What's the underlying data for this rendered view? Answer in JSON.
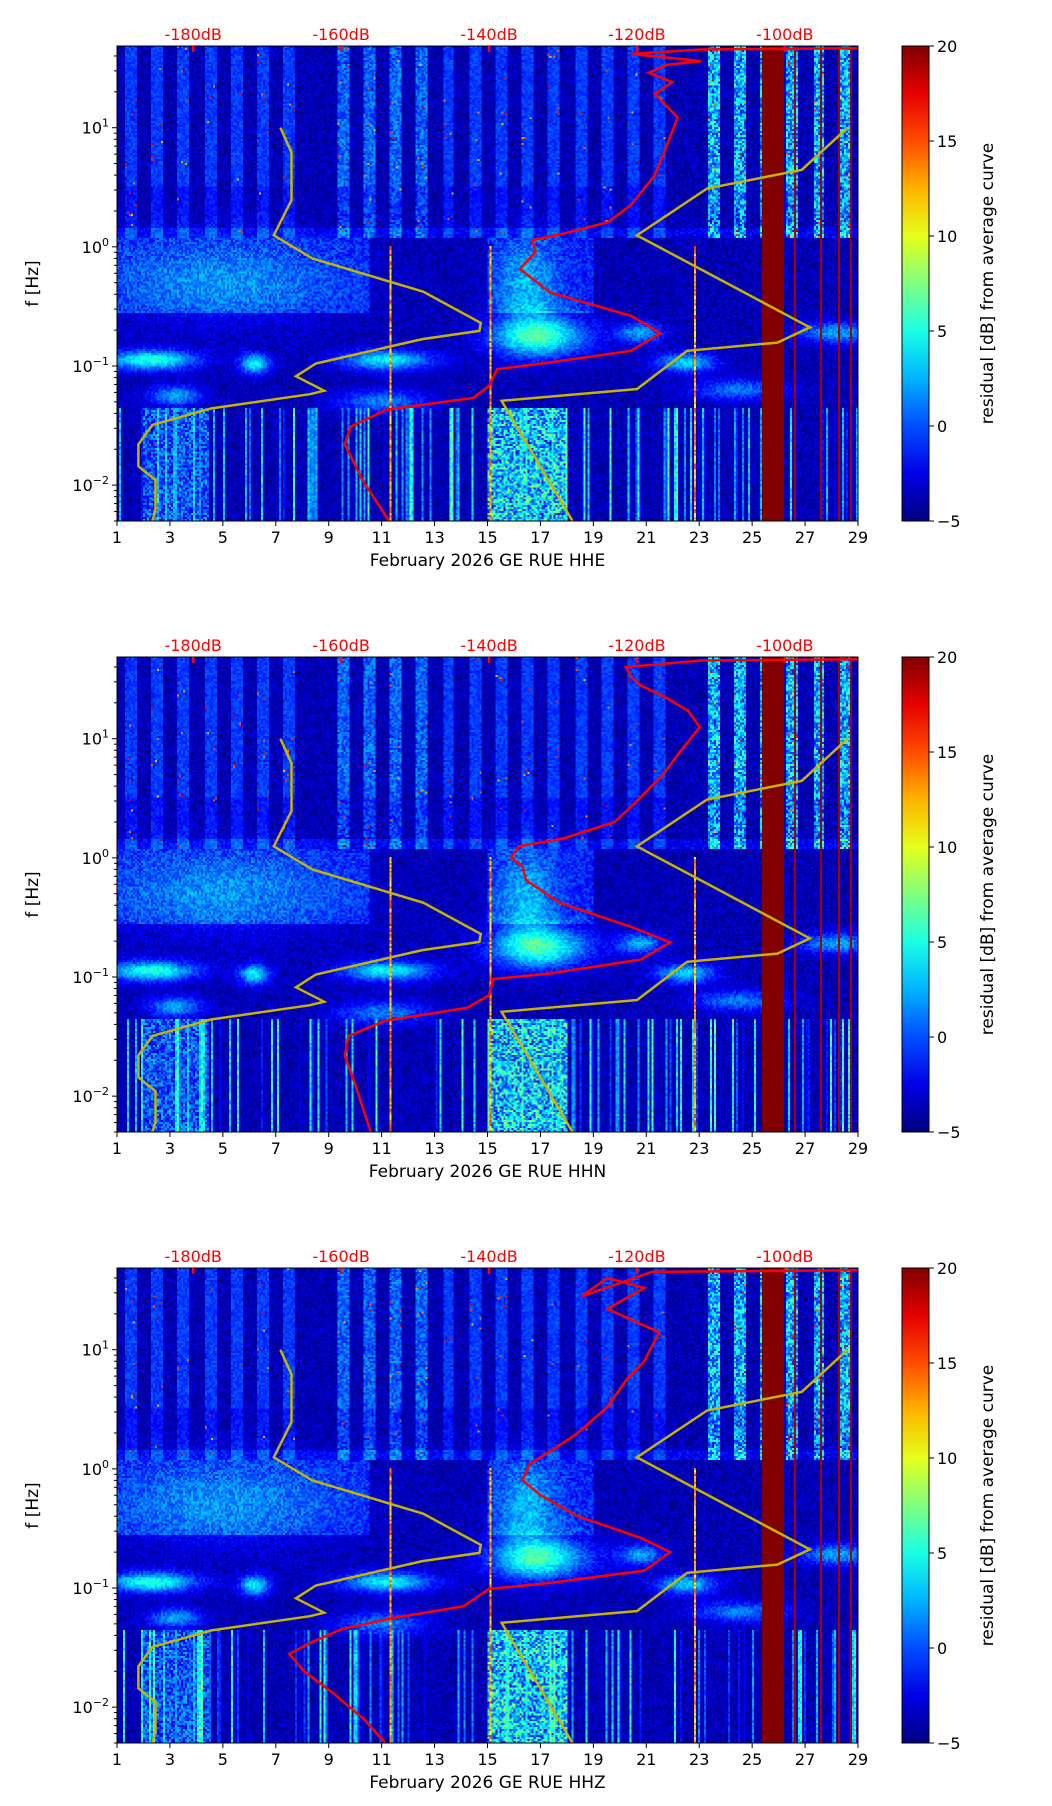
{
  "chart_data": [
    {
      "type": "heatmap",
      "xlabel": "February 2026 GE RUE  HHE",
      "ylabel": "f [Hz]",
      "colorbar_label": "residual [dB] from average curve",
      "x_ticks": [
        "1",
        "3",
        "5",
        "7",
        "9",
        "11",
        "13",
        "15",
        "17",
        "19",
        "21",
        "23",
        "25",
        "27",
        "29"
      ],
      "xlim": [
        1,
        29
      ],
      "ylim_hz": [
        0.005,
        48.5
      ],
      "y_ticks": [
        {
          "base": "10",
          "exp": "−2",
          "value": 0.01
        },
        {
          "base": "10",
          "exp": "−1",
          "value": 0.1
        },
        {
          "base": "10",
          "exp": "0",
          "value": 1
        },
        {
          "base": "10",
          "exp": "1",
          "value": 10
        }
      ],
      "top_ticks": [
        {
          "label": "-180dB",
          "value": -180
        },
        {
          "label": "-160dB",
          "value": -160
        },
        {
          "label": "-140dB",
          "value": -140
        },
        {
          "label": "-120dB",
          "value": -120
        },
        {
          "label": "-100dB",
          "value": -100
        }
      ],
      "top_range_db": [
        -190.3,
        -90.1
      ],
      "clim": [
        -5,
        20
      ],
      "colorbar_ticks": [
        "−5",
        "0",
        "5",
        "10",
        "15",
        "20"
      ],
      "colors": {
        "psd_curve": "#ff0000",
        "noise_model": "#c8b400",
        "axis_label_top": "#ff0000"
      },
      "noise_model_low": [
        [
          -168.2,
          10
        ],
        [
          -166.7,
          6.22
        ],
        [
          -166.7,
          2.47
        ],
        [
          -169.1,
          1.25
        ],
        [
          -163.9,
          0.8
        ],
        [
          -148.9,
          0.42
        ],
        [
          -141.1,
          0.23
        ],
        [
          -141.3,
          0.197
        ],
        [
          -149,
          0.168
        ],
        [
          -163.4,
          0.105
        ],
        [
          -166.1,
          0.082
        ],
        [
          -162.3,
          0.062
        ],
        [
          -164.2,
          0.058
        ],
        [
          -177.6,
          0.044
        ],
        [
          -185.5,
          0.032
        ],
        [
          -187.4,
          0.022
        ],
        [
          -187.4,
          0.0144
        ],
        [
          -185.1,
          0.011
        ],
        [
          -185.1,
          0.0062
        ],
        [
          -185.5,
          0.005
        ]
      ],
      "noise_model_high": [
        [
          -91.5,
          10
        ],
        [
          -97.7,
          4.43
        ],
        [
          -110.5,
          3.09
        ],
        [
          -120,
          1.25
        ],
        [
          -96.6,
          0.211
        ],
        [
          -101,
          0.157
        ],
        [
          -113.2,
          0.134
        ],
        [
          -120,
          0.064
        ],
        [
          -138.3,
          0.051
        ],
        [
          -128.7,
          0.005
        ]
      ],
      "psd_curve": [
        [
          -90.1,
          46.4
        ],
        [
          -111.3,
          45.3
        ],
        [
          -120.8,
          41.6
        ],
        [
          -111.3,
          36.2
        ],
        [
          -116,
          33.7
        ],
        [
          -118.4,
          28.9
        ],
        [
          -115.2,
          24.1
        ],
        [
          -117.6,
          19.2
        ],
        [
          -114.5,
          12.2
        ],
        [
          -116.3,
          6.22
        ],
        [
          -117.6,
          3.96
        ],
        [
          -120.8,
          2.25
        ],
        [
          -123.9,
          1.61
        ],
        [
          -130.2,
          1.28
        ],
        [
          -134.2,
          1.14
        ],
        [
          -133.7,
          0.91
        ],
        [
          -135.8,
          0.65
        ],
        [
          -131.8,
          0.415
        ],
        [
          -120.8,
          0.264
        ],
        [
          -116.8,
          0.188
        ],
        [
          -120.8,
          0.134
        ],
        [
          -131.8,
          0.107
        ],
        [
          -138.9,
          0.094
        ],
        [
          -140,
          0.068
        ],
        [
          -142.1,
          0.054
        ],
        [
          -153.9,
          0.043
        ],
        [
          -158.7,
          0.031
        ],
        [
          -159.5,
          0.022
        ],
        [
          -157.1,
          0.011
        ],
        [
          -153.5,
          0.005
        ]
      ]
    },
    {
      "type": "heatmap",
      "xlabel": "February 2026 GE RUE  HHN",
      "ylabel": "f [Hz]",
      "colorbar_label": "residual [dB] from average curve",
      "x_ticks": [
        "1",
        "3",
        "5",
        "7",
        "9",
        "11",
        "13",
        "15",
        "17",
        "19",
        "21",
        "23",
        "25",
        "27",
        "29"
      ],
      "xlim": [
        1,
        29
      ],
      "ylim_hz": [
        0.005,
        48.5
      ],
      "y_ticks": [
        {
          "base": "10",
          "exp": "−2",
          "value": 0.01
        },
        {
          "base": "10",
          "exp": "−1",
          "value": 0.1
        },
        {
          "base": "10",
          "exp": "0",
          "value": 1
        },
        {
          "base": "10",
          "exp": "1",
          "value": 10
        }
      ],
      "top_ticks": [
        {
          "label": "-180dB",
          "value": -180
        },
        {
          "label": "-160dB",
          "value": -160
        },
        {
          "label": "-140dB",
          "value": -140
        },
        {
          "label": "-120dB",
          "value": -120
        },
        {
          "label": "-100dB",
          "value": -100
        }
      ],
      "top_range_db": [
        -190.3,
        -90.1
      ],
      "clim": [
        -5,
        20
      ],
      "colorbar_ticks": [
        "−5",
        "0",
        "5",
        "10",
        "15",
        "20"
      ],
      "colors": {
        "psd_curve": "#ff0000",
        "noise_model": "#c8b400",
        "axis_label_top": "#ff0000"
      },
      "noise_model_low": [
        [
          -168.2,
          10
        ],
        [
          -166.7,
          6.22
        ],
        [
          -166.7,
          2.47
        ],
        [
          -169.1,
          1.25
        ],
        [
          -163.9,
          0.8
        ],
        [
          -148.9,
          0.42
        ],
        [
          -141.1,
          0.23
        ],
        [
          -141.3,
          0.197
        ],
        [
          -149,
          0.168
        ],
        [
          -163.4,
          0.105
        ],
        [
          -166.1,
          0.082
        ],
        [
          -162.3,
          0.062
        ],
        [
          -164.2,
          0.058
        ],
        [
          -177.6,
          0.044
        ],
        [
          -185.5,
          0.032
        ],
        [
          -187.4,
          0.022
        ],
        [
          -187.4,
          0.0144
        ],
        [
          -185.1,
          0.011
        ],
        [
          -185.1,
          0.0062
        ],
        [
          -185.5,
          0.005
        ]
      ],
      "noise_model_high": [
        [
          -91.5,
          10
        ],
        [
          -97.7,
          4.43
        ],
        [
          -110.5,
          3.09
        ],
        [
          -120,
          1.25
        ],
        [
          -96.6,
          0.211
        ],
        [
          -101,
          0.157
        ],
        [
          -113.2,
          0.134
        ],
        [
          -120,
          0.064
        ],
        [
          -138.3,
          0.051
        ],
        [
          -128.7,
          0.005
        ]
      ],
      "psd_curve": [
        [
          -90.1,
          46.4
        ],
        [
          -111.3,
          45.3
        ],
        [
          -121.5,
          40
        ],
        [
          -120.8,
          33
        ],
        [
          -119.5,
          28
        ],
        [
          -116,
          22
        ],
        [
          -113,
          17
        ],
        [
          -111.5,
          12.5
        ],
        [
          -114,
          8
        ],
        [
          -116.5,
          5
        ],
        [
          -120,
          3
        ],
        [
          -123,
          2
        ],
        [
          -130,
          1.45
        ],
        [
          -136,
          1.25
        ],
        [
          -137,
          1.0
        ],
        [
          -135.5,
          0.85
        ],
        [
          -135,
          0.65
        ],
        [
          -130.5,
          0.42
        ],
        [
          -120.8,
          0.264
        ],
        [
          -115.5,
          0.195
        ],
        [
          -119.5,
          0.14
        ],
        [
          -131.8,
          0.107
        ],
        [
          -139.5,
          0.096
        ],
        [
          -140,
          0.07
        ],
        [
          -143,
          0.055
        ],
        [
          -154,
          0.043
        ],
        [
          -159,
          0.032
        ],
        [
          -159.5,
          0.022
        ],
        [
          -158,
          0.012
        ],
        [
          -156,
          0.005
        ]
      ]
    },
    {
      "type": "heatmap",
      "xlabel": "February 2026 GE RUE  HHZ",
      "ylabel": "f [Hz]",
      "colorbar_label": "residual [dB] from average curve",
      "x_ticks": [
        "1",
        "3",
        "5",
        "7",
        "9",
        "11",
        "13",
        "15",
        "17",
        "19",
        "21",
        "23",
        "25",
        "27",
        "29"
      ],
      "xlim": [
        1,
        29
      ],
      "ylim_hz": [
        0.005,
        48.5
      ],
      "y_ticks": [
        {
          "base": "10",
          "exp": "−2",
          "value": 0.01
        },
        {
          "base": "10",
          "exp": "−1",
          "value": 0.1
        },
        {
          "base": "10",
          "exp": "0",
          "value": 1
        },
        {
          "base": "10",
          "exp": "1",
          "value": 10
        }
      ],
      "top_ticks": [
        {
          "label": "-180dB",
          "value": -180
        },
        {
          "label": "-160dB",
          "value": -160
        },
        {
          "label": "-140dB",
          "value": -140
        },
        {
          "label": "-120dB",
          "value": -120
        },
        {
          "label": "-100dB",
          "value": -100
        }
      ],
      "top_range_db": [
        -190.3,
        -90.1
      ],
      "clim": [
        -5,
        20
      ],
      "colorbar_ticks": [
        "−5",
        "0",
        "5",
        "10",
        "15",
        "20"
      ],
      "colors": {
        "psd_curve": "#ff0000",
        "noise_model": "#c8b400",
        "axis_label_top": "#ff0000"
      },
      "noise_model_low": [
        [
          -168.2,
          10
        ],
        [
          -166.7,
          6.22
        ],
        [
          -166.7,
          2.47
        ],
        [
          -169.1,
          1.25
        ],
        [
          -163.9,
          0.8
        ],
        [
          -148.9,
          0.42
        ],
        [
          -141.1,
          0.23
        ],
        [
          -141.3,
          0.197
        ],
        [
          -149,
          0.168
        ],
        [
          -163.4,
          0.105
        ],
        [
          -166.1,
          0.082
        ],
        [
          -162.3,
          0.062
        ],
        [
          -164.2,
          0.058
        ],
        [
          -177.6,
          0.044
        ],
        [
          -185.5,
          0.032
        ],
        [
          -187.4,
          0.022
        ],
        [
          -187.4,
          0.0144
        ],
        [
          -185.1,
          0.011
        ],
        [
          -185.1,
          0.0062
        ],
        [
          -185.5,
          0.005
        ]
      ],
      "noise_model_high": [
        [
          -91.5,
          10
        ],
        [
          -97.7,
          4.43
        ],
        [
          -110.5,
          3.09
        ],
        [
          -120,
          1.25
        ],
        [
          -96.6,
          0.211
        ],
        [
          -101,
          0.157
        ],
        [
          -113.2,
          0.134
        ],
        [
          -120,
          0.064
        ],
        [
          -138.3,
          0.051
        ],
        [
          -128.7,
          0.005
        ]
      ],
      "psd_curve": [
        [
          -90.1,
          46.4
        ],
        [
          -118,
          45
        ],
        [
          -127.5,
          28
        ],
        [
          -124,
          40
        ],
        [
          -119,
          33
        ],
        [
          -124,
          22
        ],
        [
          -117,
          14
        ],
        [
          -119,
          8
        ],
        [
          -121.5,
          5.5
        ],
        [
          -124,
          3.3
        ],
        [
          -128,
          2
        ],
        [
          -131,
          1.5
        ],
        [
          -134.5,
          1.1
        ],
        [
          -135.5,
          0.8
        ],
        [
          -133,
          0.6
        ],
        [
          -128,
          0.4
        ],
        [
          -119.5,
          0.264
        ],
        [
          -115.5,
          0.2
        ],
        [
          -119,
          0.14
        ],
        [
          -132,
          0.11
        ],
        [
          -140,
          0.098
        ],
        [
          -143.5,
          0.07
        ],
        [
          -153,
          0.056
        ],
        [
          -160,
          0.045
        ],
        [
          -164,
          0.035
        ],
        [
          -167,
          0.028
        ],
        [
          -165,
          0.02
        ],
        [
          -161,
          0.013
        ],
        [
          -157,
          0.008
        ],
        [
          -154,
          0.005
        ]
      ]
    }
  ]
}
